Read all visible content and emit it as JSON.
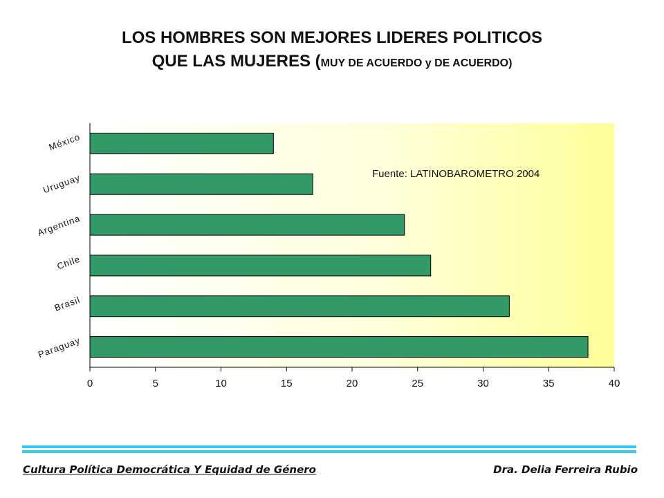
{
  "title": {
    "line1": "LOS HOMBRES SON MEJORES LIDERES POLITICOS",
    "line2_main": "QUE LAS MUJERES (",
    "line2_small": "MUY DE ACUERDO  y  DE ACUERDO)"
  },
  "chart_data": {
    "type": "bar",
    "orientation": "horizontal",
    "categories": [
      "México",
      "Uruguay",
      "Argentina",
      "Chile",
      "Brasil",
      "Paraguay"
    ],
    "values": [
      14,
      17,
      24,
      26,
      32,
      38
    ],
    "xlim": [
      0,
      40
    ],
    "xticks": [
      "0",
      "5",
      "10",
      "15",
      "20",
      "25",
      "30",
      "35",
      "40"
    ],
    "annotation": "Fuente: LATINOBAROMETRO 2004",
    "bar_color": "#339966",
    "grid": false
  },
  "footer": {
    "left": "Cultura Política Democrática Y Equidad de Género",
    "right": "Dra. Delia Ferreira Rubio"
  }
}
